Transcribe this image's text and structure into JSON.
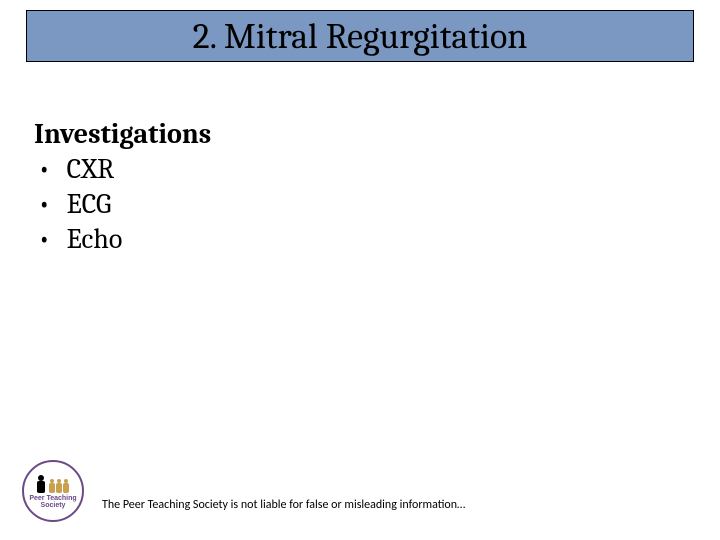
{
  "slide": {
    "title": "2. Mitral Regurgitation",
    "title_fontsize": 36,
    "title_bar_bg": "#7a98c2",
    "title_bar_border": "#000000",
    "section_heading": "Investigations",
    "bullets": [
      "CXR",
      "ECG",
      "Echo"
    ],
    "body_fontsize": 28,
    "text_color": "#000000",
    "background_color": "#ffffff"
  },
  "logo": {
    "line1": "Peer Teaching",
    "line2": "Society",
    "border_color": "#6b4a8a",
    "text_color": "#6b4a8a",
    "figure_main_color": "#000000",
    "figure_small_color": "#c9a050"
  },
  "footer": {
    "disclaimer": "The Peer Teaching Society is not liable for false or misleading information…",
    "fontsize": 12
  }
}
